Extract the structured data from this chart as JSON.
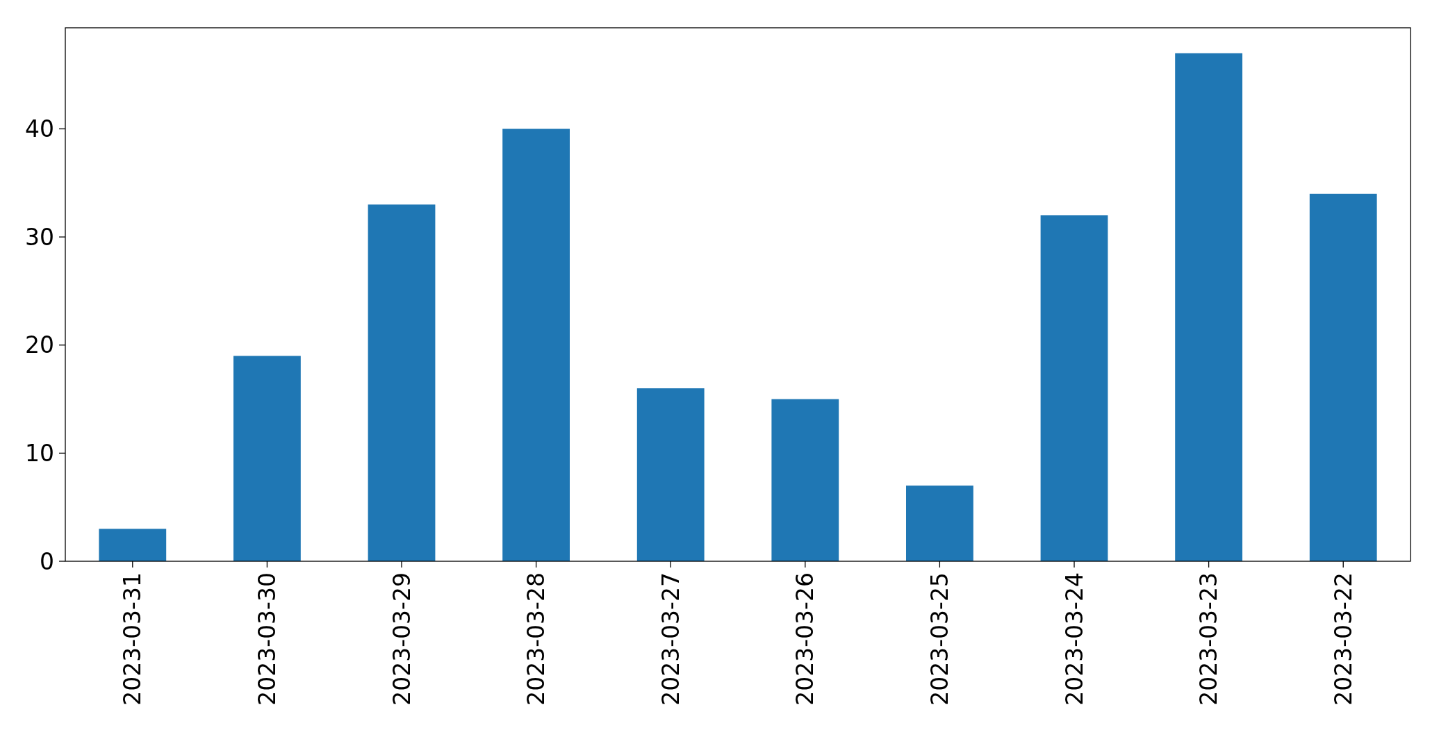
{
  "chart_data": {
    "type": "bar",
    "categories": [
      "2023-03-31",
      "2023-03-30",
      "2023-03-29",
      "2023-03-28",
      "2023-03-27",
      "2023-03-26",
      "2023-03-25",
      "2023-03-24",
      "2023-03-23",
      "2023-03-22"
    ],
    "values": [
      3,
      19,
      33,
      40,
      16,
      15,
      7,
      32,
      47,
      34
    ],
    "color": "#1f77b4",
    "ylim": [
      0,
      49.35
    ],
    "yticks": [
      0,
      10,
      20,
      30,
      40
    ],
    "grid": false
  }
}
